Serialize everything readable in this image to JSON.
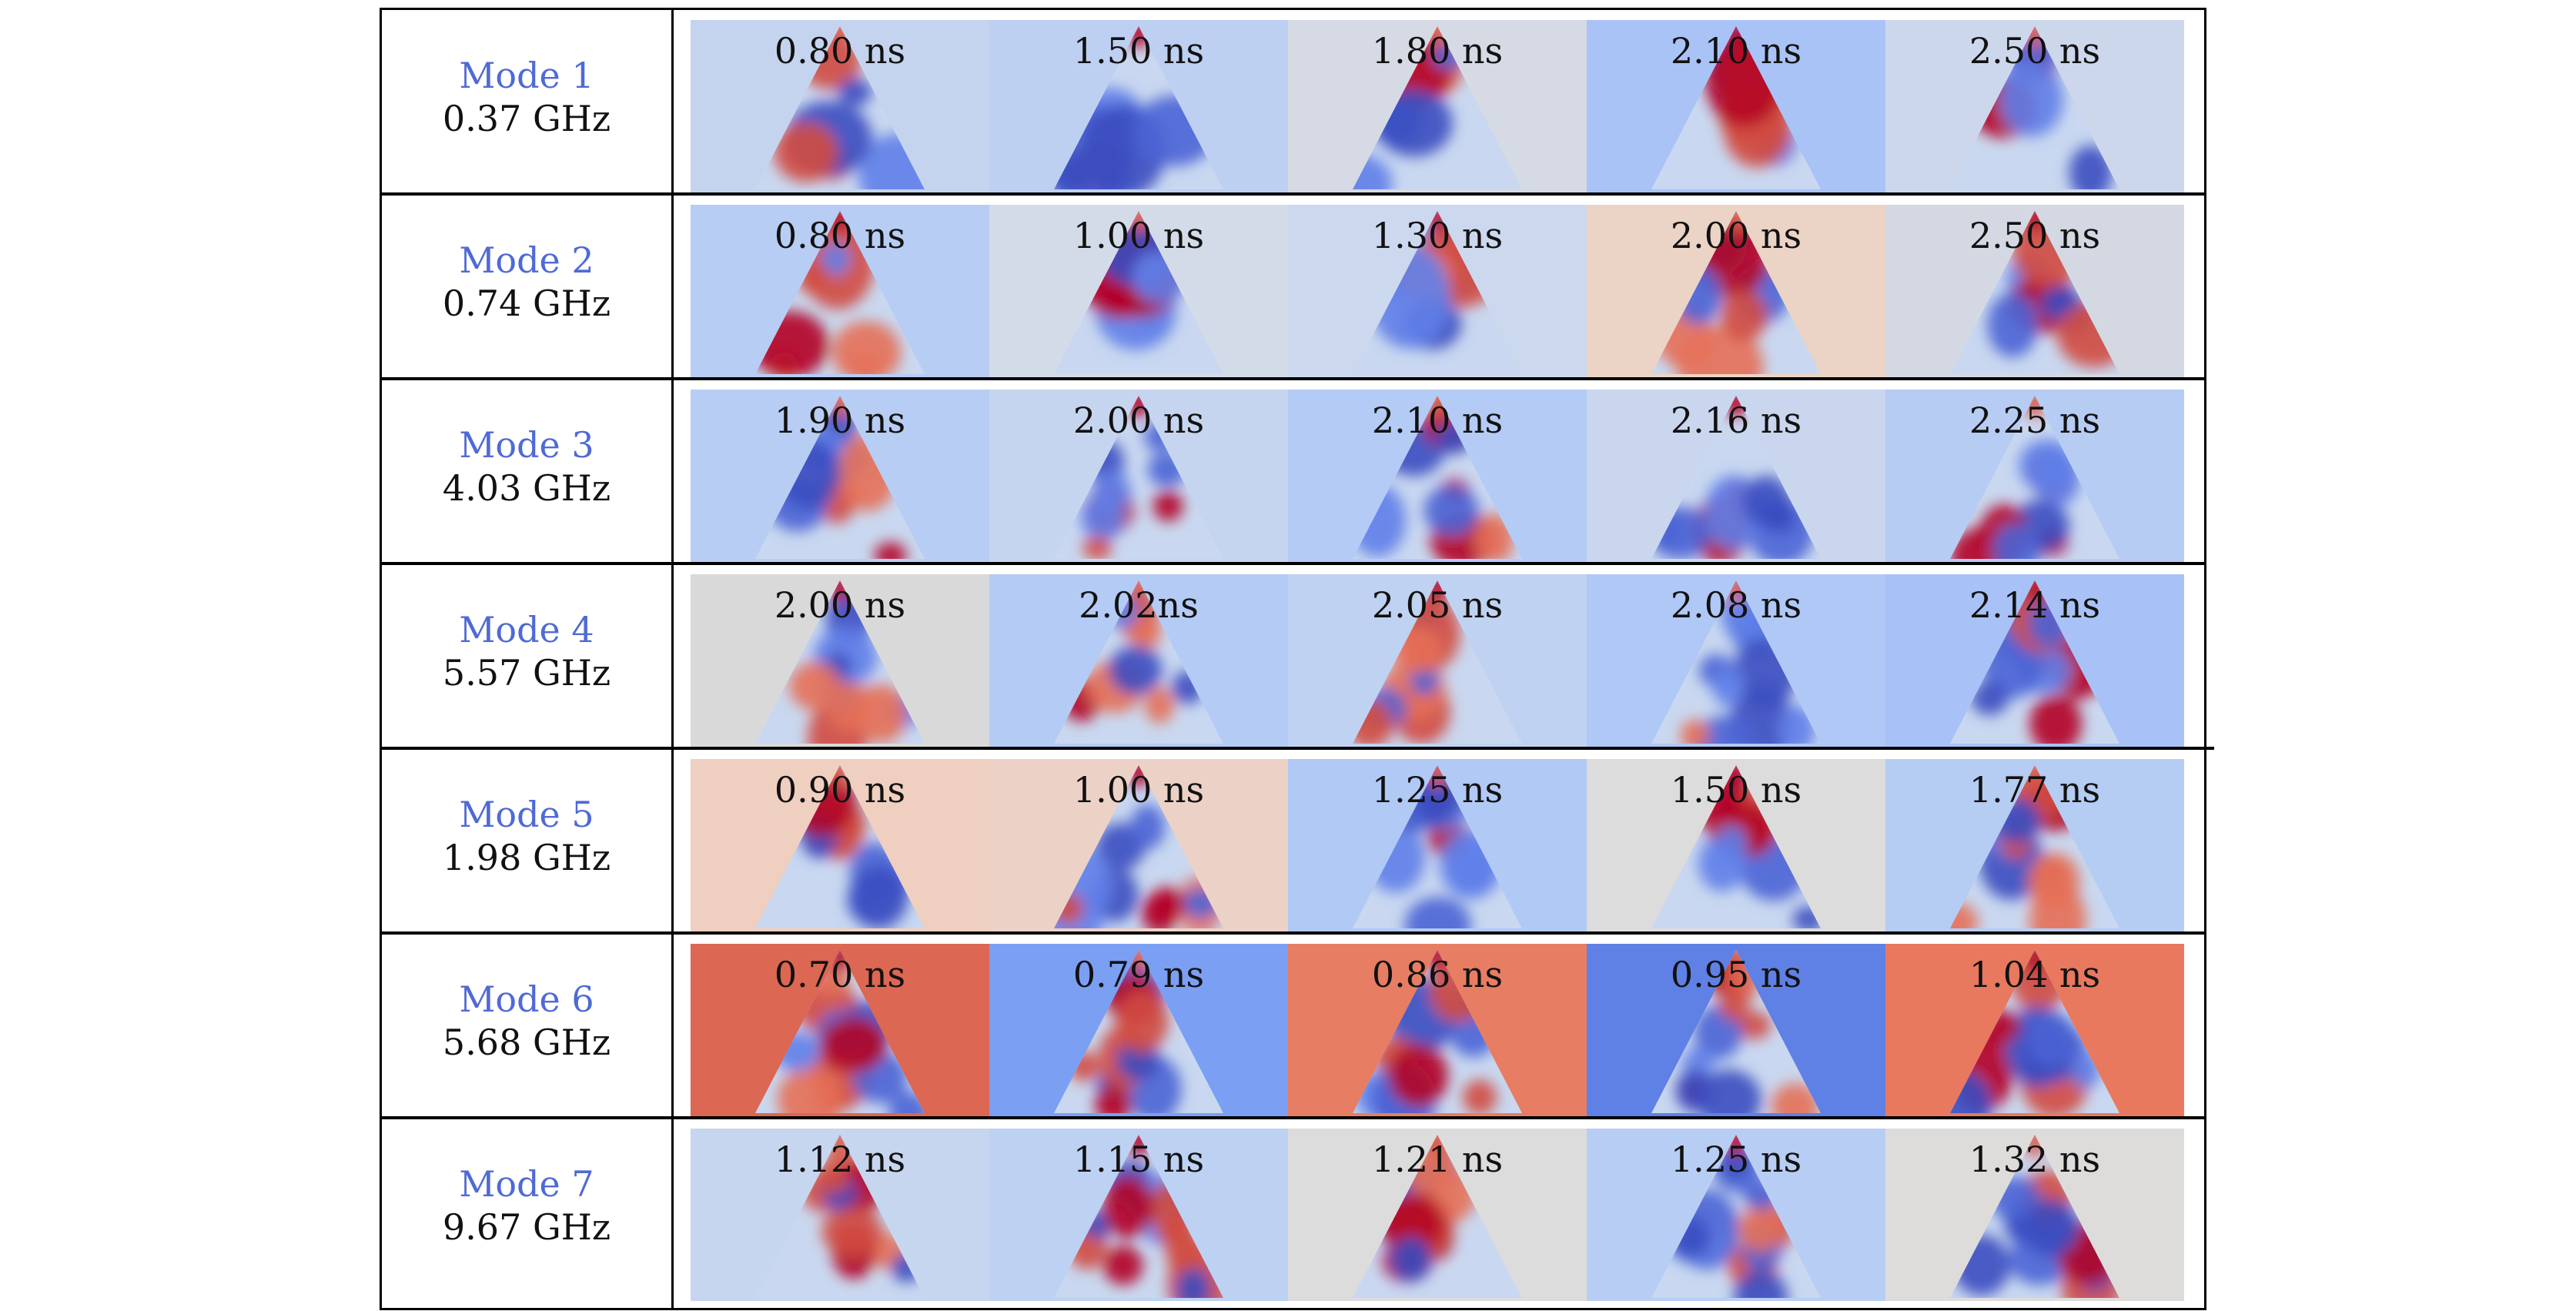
{
  "colors": {
    "mode_label": "#4f6ad6",
    "cold": "#3b4cc0",
    "hot": "#b40426",
    "neutral": "#dddddd"
  },
  "rows": [
    {
      "mode": "Mode 1",
      "freq": "0.37 GHz",
      "panels": [
        {
          "time": "0.80 ns",
          "bg": "#c4d4ee"
        },
        {
          "time": "1.50 ns",
          "bg": "#bdd0f2"
        },
        {
          "time": "1.80 ns",
          "bg": "#d6dae4"
        },
        {
          "time": "2.10 ns",
          "bg": "#a9c3f7"
        },
        {
          "time": "2.50 ns",
          "bg": "#cdd7ec"
        }
      ]
    },
    {
      "mode": "Mode 2",
      "freq": "0.74 GHz",
      "panels": [
        {
          "time": "0.80 ns",
          "bg": "#b7cdf3"
        },
        {
          "time": "1.00 ns",
          "bg": "#d4dbe8"
        },
        {
          "time": "1.30 ns",
          "bg": "#ccd8ee"
        },
        {
          "time": "2.00 ns",
          "bg": "#ebd3c6"
        },
        {
          "time": "2.50 ns",
          "bg": "#d3d8e2"
        }
      ]
    },
    {
      "mode": "Mode 3",
      "freq": "4.03 GHz",
      "panels": [
        {
          "time": "1.90 ns",
          "bg": "#b8cdf3"
        },
        {
          "time": "2.00 ns",
          "bg": "#c6d5ef"
        },
        {
          "time": "2.10 ns",
          "bg": "#b3cbf5"
        },
        {
          "time": "2.16 ns",
          "bg": "#c9d6ee"
        },
        {
          "time": "2.25 ns",
          "bg": "#b6ccf3"
        }
      ]
    },
    {
      "mode": "Mode 4",
      "freq": "5.57 GHz",
      "panels": [
        {
          "time": "2.00 ns",
          "bg": "#d9d9d9"
        },
        {
          "time": "2.02ns",
          "bg": "#b3cbf5"
        },
        {
          "time": "2.05 ns",
          "bg": "#bfd2f1"
        },
        {
          "time": "2.08 ns",
          "bg": "#afc8f6"
        },
        {
          "time": "2.14 ns",
          "bg": "#a8c2f7"
        }
      ]
    },
    {
      "mode": "Mode 5",
      "freq": "1.98 GHz",
      "panels": [
        {
          "time": "0.90 ns",
          "bg": "#efcfbf"
        },
        {
          "time": "1.00 ns",
          "bg": "#ecd2c6"
        },
        {
          "time": "1.25 ns",
          "bg": "#b1c9f5"
        },
        {
          "time": "1.50 ns",
          "bg": "#dcdcdc"
        },
        {
          "time": "1.77 ns",
          "bg": "#b5ccf3"
        }
      ]
    },
    {
      "mode": "Mode 6",
      "freq": "5.68 GHz",
      "panels": [
        {
          "time": "0.70 ns",
          "bg": "#dc6752"
        },
        {
          "time": "0.79 ns",
          "bg": "#7b9ff3"
        },
        {
          "time": "0.86 ns",
          "bg": "#e77d63"
        },
        {
          "time": "0.95 ns",
          "bg": "#5f80e4"
        },
        {
          "time": "1.04 ns",
          "bg": "#e8795f"
        }
      ]
    },
    {
      "mode": "Mode 7",
      "freq": "9.67 GHz",
      "panels": [
        {
          "time": "1.12 ns",
          "bg": "#c7d6ef"
        },
        {
          "time": "1.15 ns",
          "bg": "#bdd1f3"
        },
        {
          "time": "1.21 ns",
          "bg": "#dcdcdc"
        },
        {
          "time": "1.25 ns",
          "bg": "#b7cdf3"
        },
        {
          "time": "1.32 ns",
          "bg": "#dedcdb"
        }
      ]
    }
  ]
}
